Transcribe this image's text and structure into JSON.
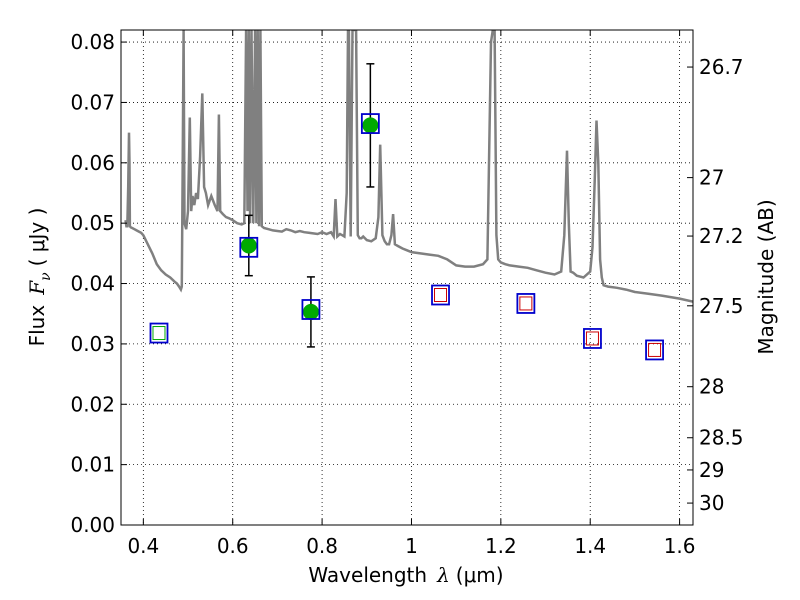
{
  "chart_data": {
    "type": "scatter",
    "xlabel": "Wavelength",
    "xlabel_symbol": "λ",
    "xlabel_unit": "(μm)",
    "ylabel": "Flux",
    "ylabel_symbol": "F",
    "ylabel_subscript": "ν",
    "ylabel_unit": "( μJy )",
    "y2label": "Magnitude (AB)",
    "xlim": [
      0.35,
      1.63
    ],
    "ylim": [
      0.0,
      0.082
    ],
    "grid": true,
    "x_ticks": [
      {
        "value": 0.4,
        "label": "0.4"
      },
      {
        "value": 0.6,
        "label": "0.6"
      },
      {
        "value": 0.8,
        "label": "0.8"
      },
      {
        "value": 1.0,
        "label": "1"
      },
      {
        "value": 1.2,
        "label": "1.2"
      },
      {
        "value": 1.4,
        "label": "1.4"
      },
      {
        "value": 1.6,
        "label": "1.6"
      }
    ],
    "y_ticks": [
      {
        "value": 0.0,
        "label": "0.00"
      },
      {
        "value": 0.01,
        "label": "0.01"
      },
      {
        "value": 0.02,
        "label": "0.02"
      },
      {
        "value": 0.03,
        "label": "0.03"
      },
      {
        "value": 0.04,
        "label": "0.04"
      },
      {
        "value": 0.05,
        "label": "0.05"
      },
      {
        "value": 0.06,
        "label": "0.06"
      },
      {
        "value": 0.07,
        "label": "0.07"
      },
      {
        "value": 0.08,
        "label": "0.08"
      }
    ],
    "y2_ticks": [
      {
        "mag": 26.7,
        "label": "26.7"
      },
      {
        "mag": 27.0,
        "label": "27"
      },
      {
        "mag": 27.2,
        "label": "27.2"
      },
      {
        "mag": 27.5,
        "label": "27.5"
      },
      {
        "mag": 28.0,
        "label": "28"
      },
      {
        "mag": 28.5,
        "label": "28.5"
      },
      {
        "mag": 29.0,
        "label": "29"
      },
      {
        "mag": 30.0,
        "label": "30"
      }
    ],
    "series": [
      {
        "role": "model-spectrum",
        "kind": "line",
        "color": "#808080",
        "x": [
          0.36,
          0.362,
          0.364,
          0.366,
          0.368,
          0.369,
          0.37,
          0.372,
          0.375,
          0.38,
          0.385,
          0.39,
          0.395,
          0.4,
          0.41,
          0.42,
          0.43,
          0.44,
          0.45,
          0.46,
          0.47,
          0.475,
          0.48,
          0.484,
          0.486,
          0.488,
          0.49,
          0.492,
          0.496,
          0.5,
          0.504,
          0.507,
          0.51,
          0.514,
          0.518,
          0.522,
          0.527,
          0.532,
          0.536,
          0.54,
          0.545,
          0.552,
          0.56,
          0.566,
          0.569,
          0.572,
          0.578,
          0.585,
          0.592,
          0.6,
          0.61,
          0.62,
          0.626,
          0.63,
          0.633,
          0.636,
          0.639,
          0.642,
          0.646,
          0.65,
          0.653,
          0.656,
          0.659,
          0.662,
          0.665,
          0.67,
          0.68,
          0.69,
          0.7,
          0.71,
          0.72,
          0.73,
          0.74,
          0.75,
          0.76,
          0.77,
          0.78,
          0.79,
          0.8,
          0.81,
          0.82,
          0.826,
          0.83,
          0.834,
          0.84,
          0.845,
          0.85,
          0.855,
          0.858,
          0.86,
          0.864,
          0.868,
          0.872,
          0.876,
          0.88,
          0.884,
          0.888,
          0.892,
          0.9,
          0.91,
          0.92,
          0.926,
          0.93,
          0.935,
          0.94,
          0.945,
          0.95,
          0.955,
          0.959,
          0.963,
          0.97,
          0.98,
          0.99,
          1.0,
          1.02,
          1.04,
          1.06,
          1.08,
          1.1,
          1.12,
          1.14,
          1.16,
          1.17,
          1.178,
          1.182,
          1.186,
          1.19,
          1.194,
          1.2,
          1.21,
          1.22,
          1.24,
          1.26,
          1.28,
          1.3,
          1.32,
          1.335,
          1.342,
          1.348,
          1.352,
          1.356,
          1.362,
          1.37,
          1.385,
          1.4,
          1.405,
          1.41,
          1.414,
          1.418,
          1.422,
          1.426,
          1.43,
          1.44,
          1.46,
          1.48,
          1.5,
          1.53,
          1.56,
          1.6,
          1.63
        ],
        "y": [
          0.0505,
          0.0495,
          0.0495,
          0.056,
          0.065,
          0.06,
          0.0495,
          0.0493,
          0.0492,
          0.049,
          0.0488,
          0.0486,
          0.0484,
          0.048,
          0.0465,
          0.045,
          0.0432,
          0.0422,
          0.0415,
          0.041,
          0.0403,
          0.04,
          0.0395,
          0.039,
          0.0395,
          0.06,
          0.082,
          0.05,
          0.049,
          0.052,
          0.0675,
          0.052,
          0.0545,
          0.053,
          0.055,
          0.054,
          0.061,
          0.0715,
          0.056,
          0.055,
          0.053,
          0.0545,
          0.053,
          0.052,
          0.068,
          0.052,
          0.0515,
          0.051,
          0.0508,
          0.0505,
          0.05,
          0.0498,
          0.05,
          0.082,
          0.052,
          0.082,
          0.05,
          0.082,
          0.05,
          0.082,
          0.05,
          0.082,
          0.0495,
          0.082,
          0.0495,
          0.0492,
          0.049,
          0.0488,
          0.0487,
          0.0486,
          0.049,
          0.0488,
          0.0485,
          0.0487,
          0.0485,
          0.0484,
          0.0483,
          0.0482,
          0.0485,
          0.0482,
          0.0485,
          0.0478,
          0.054,
          0.0478,
          0.0482,
          0.048,
          0.0478,
          0.055,
          0.082,
          0.082,
          0.0478,
          0.082,
          0.082,
          0.082,
          0.048,
          0.0475,
          0.0475,
          0.0478,
          0.0472,
          0.047,
          0.0475,
          0.051,
          0.063,
          0.048,
          0.047,
          0.0465,
          0.0465,
          0.048,
          0.0515,
          0.0465,
          0.0462,
          0.0458,
          0.0455,
          0.0452,
          0.045,
          0.0448,
          0.0446,
          0.044,
          0.043,
          0.0428,
          0.0428,
          0.0432,
          0.044,
          0.08,
          0.082,
          0.082,
          0.048,
          0.044,
          0.0435,
          0.0432,
          0.043,
          0.0428,
          0.0426,
          0.0422,
          0.0418,
          0.0415,
          0.042,
          0.048,
          0.062,
          0.05,
          0.042,
          0.0418,
          0.0413,
          0.041,
          0.042,
          0.046,
          0.057,
          0.067,
          0.06,
          0.044,
          0.041,
          0.0397,
          0.0395,
          0.0393,
          0.039,
          0.0386,
          0.0383,
          0.038,
          0.0375,
          0.037
        ]
      },
      {
        "role": "observed-flux",
        "kind": "points",
        "marker": "circle",
        "color": "#00aa00",
        "errorbar_color": "#000000",
        "x": [
          0.636,
          0.775,
          0.908
        ],
        "y": [
          0.0463,
          0.0353,
          0.0662
        ],
        "yerr": [
          0.005,
          0.0058,
          0.0102
        ]
      },
      {
        "role": "model-photometry",
        "kind": "points",
        "marker": "square",
        "color": "#0000cc",
        "x": [
          0.435,
          0.636,
          0.775,
          0.908,
          1.065,
          1.256,
          1.405,
          1.544
        ],
        "y": [
          0.0318,
          0.046,
          0.0357,
          0.0665,
          0.0381,
          0.0367,
          0.0309,
          0.029
        ]
      },
      {
        "role": "band-markers",
        "kind": "points",
        "marker": "small-square",
        "x": [
          0.435,
          1.065,
          1.256,
          1.405,
          1.544
        ],
        "y": [
          0.0318,
          0.0381,
          0.0367,
          0.0309,
          0.029
        ],
        "colors": [
          "#00aa00",
          "#cc0000",
          "#cc0000",
          "#cc0000",
          "#cc0000"
        ]
      }
    ]
  }
}
